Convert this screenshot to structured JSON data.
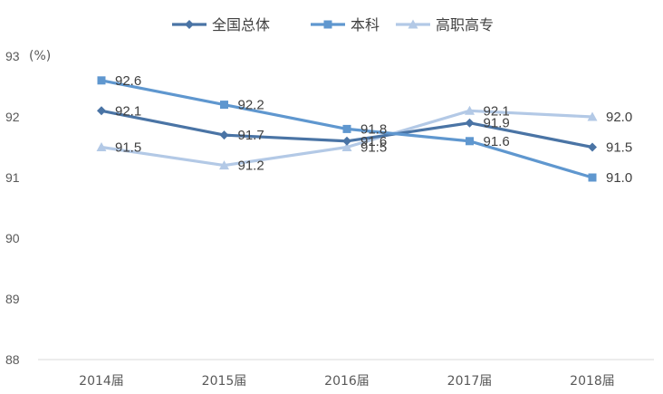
{
  "chart_data": {
    "type": "line",
    "title": "",
    "ylabel": "(%)",
    "xlabel": "",
    "categories": [
      "2014届",
      "2015届",
      "2016届",
      "2017届",
      "2018届"
    ],
    "ylim": [
      88,
      93
    ],
    "yticks": [
      88,
      89,
      90,
      91,
      92,
      93
    ],
    "grid": false,
    "legend_position": "top",
    "series": [
      {
        "name": "全国总体",
        "values": [
          92.1,
          91.7,
          91.6,
          91.9,
          91.5
        ],
        "labels": [
          "92.1",
          "91.7",
          "91.6",
          "91.9",
          "91.5"
        ],
        "color": "#4a74a5",
        "marker": "diamond"
      },
      {
        "name": "本科",
        "values": [
          92.6,
          92.2,
          91.8,
          91.6,
          91.0
        ],
        "labels": [
          "92.6",
          "92.2",
          "91.8",
          "91.6",
          "91.0"
        ],
        "color": "#5f97cf",
        "marker": "square"
      },
      {
        "name": "高职高专",
        "values": [
          91.5,
          91.2,
          91.5,
          92.1,
          92.0
        ],
        "labels": [
          "91.5",
          "91.2",
          "91.5",
          "92.1",
          "92.0"
        ],
        "color": "#b3c9e6",
        "marker": "triangle"
      }
    ]
  }
}
